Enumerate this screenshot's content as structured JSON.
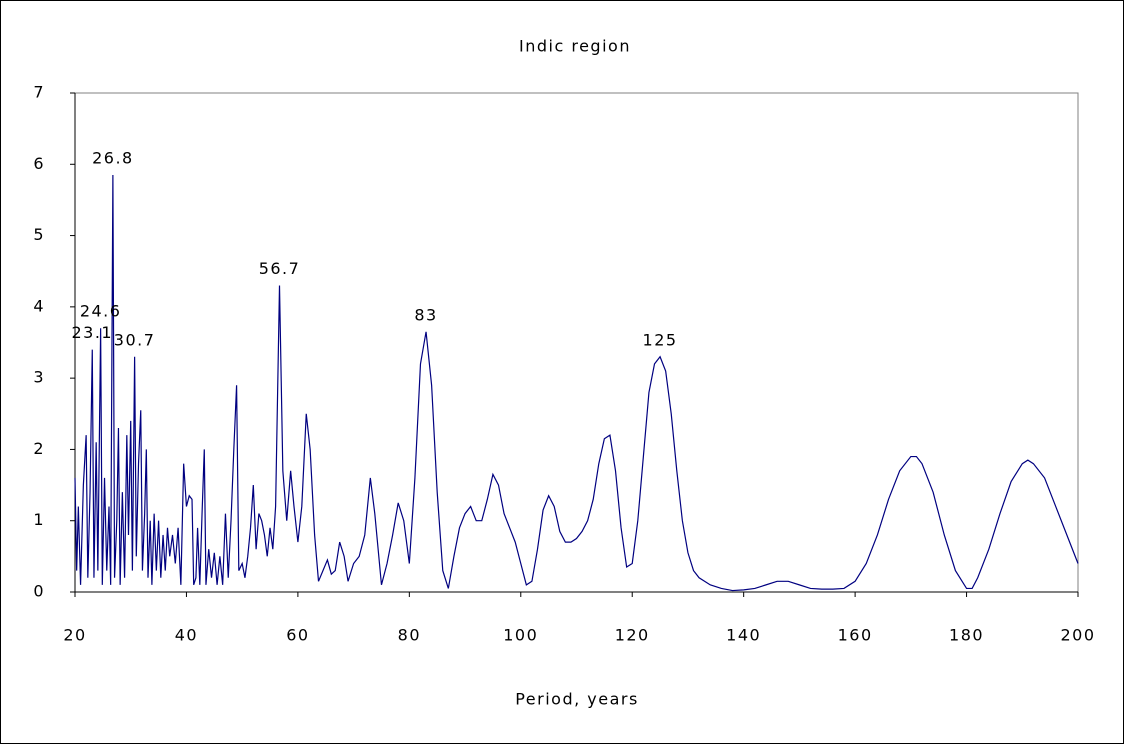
{
  "chart_data": {
    "type": "line",
    "title": "Indic region",
    "xlabel": "Period, years",
    "x": [
      20,
      20.3,
      20.6,
      21,
      21.5,
      22,
      22.3,
      22.7,
      23.1,
      23.4,
      23.8,
      24.1,
      24.6,
      24.9,
      25.3,
      25.7,
      26.1,
      26.4,
      26.8,
      27.1,
      27.5,
      27.8,
      28.1,
      28.5,
      28.9,
      29.3,
      29.6,
      30,
      30.3,
      30.7,
      31,
      31.4,
      31.8,
      32.1,
      32.5,
      32.8,
      33.1,
      33.5,
      33.8,
      34.2,
      34.6,
      35,
      35.4,
      35.8,
      36.2,
      36.6,
      37,
      37.5,
      38,
      38.5,
      39,
      39.5,
      40,
      40.5,
      41,
      41.3,
      41.7,
      42,
      42.4,
      42.8,
      43.2,
      43.5,
      44,
      44.5,
      45,
      45.5,
      46,
      46.5,
      47,
      47.5,
      48,
      48.5,
      49,
      49.4,
      50,
      50.5,
      51,
      51.5,
      52,
      52.5,
      53,
      53.5,
      54,
      54.5,
      55,
      55.5,
      56,
      56.7,
      57.3,
      58,
      58.7,
      59.3,
      60,
      60.7,
      61.5,
      62.2,
      63,
      63.7,
      64.5,
      65.3,
      66,
      66.7,
      67.5,
      68.3,
      69,
      70,
      71,
      72,
      73,
      73.8,
      75,
      76,
      77,
      78,
      79,
      80,
      81,
      82,
      83,
      84,
      85,
      86,
      87,
      88,
      89,
      90,
      91,
      92,
      93,
      94,
      95,
      96,
      97,
      98,
      99,
      100,
      101,
      102,
      103,
      104,
      105,
      106,
      107,
      108,
      109,
      110,
      111,
      112,
      113,
      114,
      115,
      116,
      117,
      118,
      119,
      120,
      121,
      122,
      123,
      124,
      125,
      126,
      127,
      128,
      129,
      130,
      131,
      132,
      134,
      136,
      138,
      140,
      142,
      144,
      146,
      148,
      150,
      152,
      154,
      156,
      158,
      160,
      162,
      164,
      166,
      168,
      170,
      171,
      172,
      174,
      176,
      178,
      180,
      181,
      182,
      184,
      186,
      188,
      190,
      191,
      192,
      194,
      196,
      198,
      200
    ],
    "series": [
      {
        "color": "#000080",
        "values": [
          1.6,
          0.3,
          1.2,
          0.1,
          1.5,
          2.2,
          0.2,
          1.4,
          3.4,
          0.2,
          2.1,
          0.3,
          3.7,
          0.1,
          1.6,
          0.3,
          1.2,
          0.1,
          5.85,
          0.2,
          1.0,
          2.3,
          0.1,
          1.4,
          0.2,
          2.2,
          0.8,
          2.4,
          0.3,
          3.3,
          0.5,
          1.8,
          2.55,
          0.3,
          1.1,
          2.0,
          0.2,
          1.0,
          0.1,
          1.1,
          0.3,
          1.0,
          0.2,
          0.8,
          0.3,
          0.9,
          0.5,
          0.8,
          0.4,
          0.9,
          0.1,
          1.8,
          1.2,
          1.35,
          1.3,
          0.1,
          0.2,
          0.9,
          0.1,
          1.1,
          2.0,
          0.1,
          0.6,
          0.2,
          0.55,
          0.1,
          0.5,
          0.1,
          1.1,
          0.2,
          1.0,
          2.0,
          2.9,
          0.3,
          0.4,
          0.2,
          0.5,
          0.9,
          1.5,
          0.6,
          1.1,
          1.0,
          0.8,
          0.5,
          0.9,
          0.6,
          1.2,
          4.3,
          1.7,
          1.0,
          1.7,
          1.2,
          0.7,
          1.2,
          2.5,
          2.0,
          0.8,
          0.15,
          0.3,
          0.45,
          0.25,
          0.3,
          0.7,
          0.5,
          0.15,
          0.4,
          0.5,
          0.8,
          1.6,
          1.1,
          0.1,
          0.4,
          0.8,
          1.25,
          1.0,
          0.4,
          1.6,
          3.2,
          3.65,
          2.9,
          1.4,
          0.3,
          0.05,
          0.5,
          0.9,
          1.1,
          1.2,
          1.0,
          1.0,
          1.3,
          1.65,
          1.5,
          1.1,
          0.9,
          0.7,
          0.4,
          0.1,
          0.15,
          0.6,
          1.15,
          1.35,
          1.2,
          0.85,
          0.7,
          0.7,
          0.75,
          0.85,
          1.0,
          1.3,
          1.8,
          2.15,
          2.2,
          1.7,
          0.9,
          0.35,
          0.4,
          1.0,
          1.9,
          2.8,
          3.2,
          3.3,
          3.1,
          2.5,
          1.7,
          1.0,
          0.55,
          0.3,
          0.2,
          0.1,
          0.05,
          0.02,
          0.03,
          0.05,
          0.1,
          0.15,
          0.15,
          0.1,
          0.05,
          0.04,
          0.04,
          0.05,
          0.15,
          0.4,
          0.8,
          1.3,
          1.7,
          1.9,
          1.9,
          1.8,
          1.4,
          0.8,
          0.3,
          0.05,
          0.05,
          0.2,
          0.6,
          1.1,
          1.55,
          1.8,
          1.85,
          1.8,
          1.6,
          1.2,
          0.8,
          0.4
        ]
      }
    ],
    "annotations": [
      23.1,
      24.6,
      26.8,
      30.7,
      56.7,
      83,
      125
    ],
    "xlim": [
      20,
      200
    ],
    "xticks": [
      20,
      40,
      60,
      80,
      100,
      120,
      140,
      160,
      180,
      200
    ],
    "ylim": [
      0,
      7
    ],
    "yticks": [
      0,
      1,
      2,
      3,
      4,
      5,
      6,
      7
    ]
  }
}
